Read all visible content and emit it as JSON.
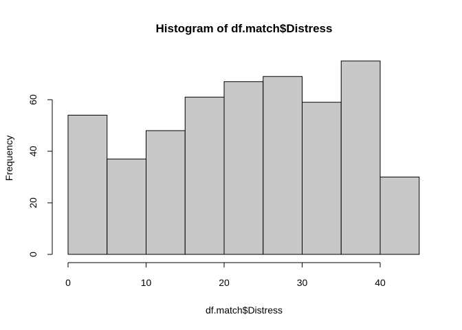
{
  "chart_data": {
    "type": "bar",
    "subtype": "histogram",
    "title": "Histogram of df.match$Distress",
    "xlabel": "df.match$Distress",
    "ylabel": "Frequency",
    "bin_edges": [
      0,
      5,
      10,
      15,
      20,
      25,
      30,
      35,
      40,
      45
    ],
    "values": [
      54,
      37,
      48,
      61,
      67,
      69,
      59,
      75,
      30
    ],
    "xlim": [
      0,
      45
    ],
    "ylim": [
      0,
      75
    ],
    "x_ticks": [
      0,
      10,
      20,
      30,
      40
    ],
    "y_ticks": [
      0,
      20,
      40,
      60
    ],
    "bar_color": "#c8c8c8",
    "grid": false,
    "legend": "none"
  }
}
